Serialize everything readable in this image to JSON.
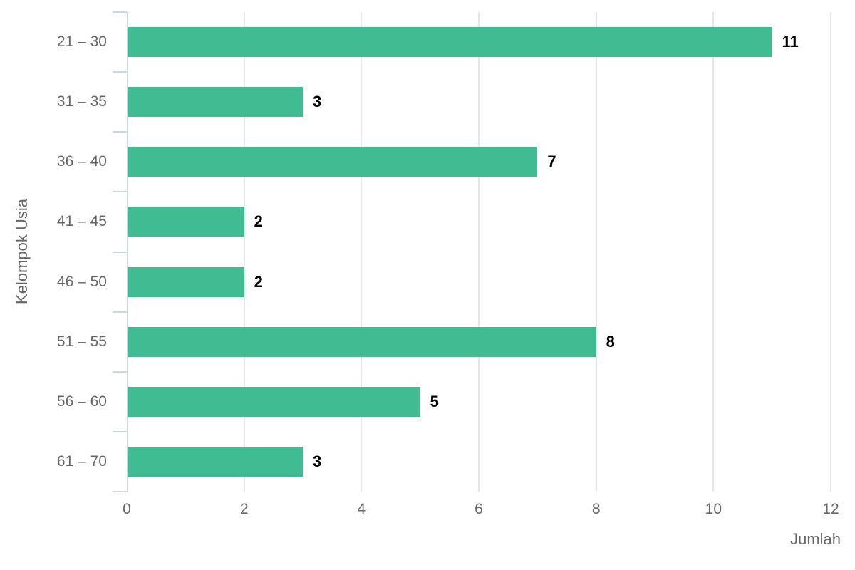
{
  "chart_data": {
    "type": "bar",
    "orientation": "horizontal",
    "title": "",
    "categories": [
      "21 – 30",
      "31 – 35",
      "36 – 40",
      "41 – 45",
      "46 – 50",
      "51 – 55",
      "56 – 60",
      "61 – 70"
    ],
    "values": [
      11,
      3,
      7,
      2,
      2,
      8,
      5,
      3
    ],
    "xlabel": "Jumlah",
    "ylabel": "Kelompok Usia",
    "xlim": [
      0,
      12
    ],
    "xticks": [
      0,
      2,
      4,
      6,
      8,
      10,
      12
    ],
    "grid": true,
    "legend": false,
    "data_labels": true,
    "colors": {
      "bar": "#41bc92",
      "gridline": "#e6e6e6",
      "axis_line": "#ccd6eb",
      "tick": "#ccd6eb",
      "label_text": "#666666",
      "data_label_text": "#000000",
      "background": "#ffffff"
    }
  }
}
